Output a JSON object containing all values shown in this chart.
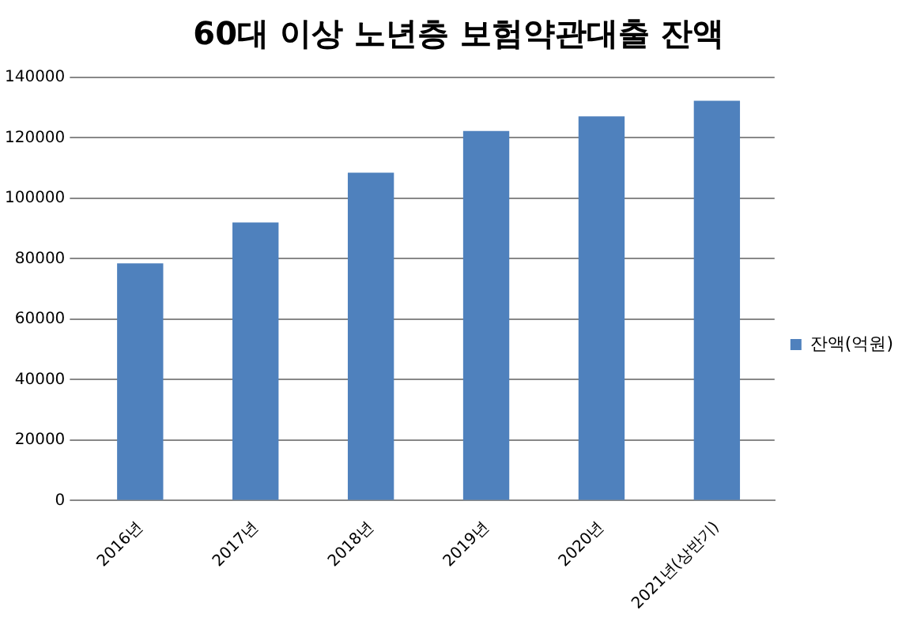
{
  "chart_data": {
    "type": "bar",
    "title": "60대 이상 노년층 보험약관대출 잔액",
    "categories": [
      "2016년",
      "2017년",
      "2018년",
      "2019년",
      "2020년",
      "2021년(상반기)"
    ],
    "series": [
      {
        "name": "잔액(억원)",
        "color": "#4f81bd",
        "values": [
          78500,
          92000,
          108500,
          122300,
          127100,
          132300
        ]
      }
    ],
    "ylim": [
      0,
      140000
    ],
    "yticks": [
      0,
      20000,
      40000,
      60000,
      80000,
      100000,
      120000,
      140000
    ],
    "grid": "y",
    "legend": "right"
  }
}
